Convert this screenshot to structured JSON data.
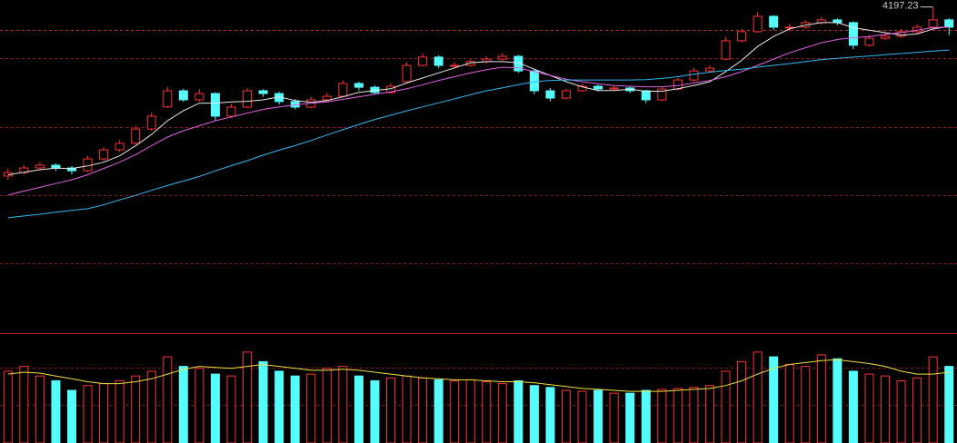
{
  "chart_data": [
    {
      "type": "candlestick",
      "up_color": "#ff3232",
      "down_color": "#54fcfc",
      "ylim": [
        2900,
        4225
      ],
      "open": [
        3525,
        3539,
        3557,
        3568,
        3557,
        3546,
        3593,
        3629,
        3655,
        3712,
        3800,
        3864,
        3828,
        3853,
        3763,
        3799,
        3864,
        3853,
        3821,
        3799,
        3828,
        3842,
        3893,
        3878,
        3857,
        3900,
        3965,
        3998,
        3965,
        3965,
        3980,
        3990,
        4001,
        3943,
        3864,
        3835,
        3864,
        3882,
        3871,
        3875,
        3864,
        3828,
        3871,
        3907,
        3943,
        3990,
        4063,
        4099,
        4160,
        4117,
        4117,
        4135,
        4146,
        4135,
        4045,
        4073,
        4081,
        4099,
        4117,
        4146
      ],
      "high": [
        3555,
        3568,
        3580,
        3575,
        3565,
        3605,
        3640,
        3668,
        3725,
        3778,
        3880,
        3872,
        3870,
        3858,
        3812,
        3875,
        3870,
        3860,
        3830,
        3840,
        3856,
        3905,
        3900,
        3885,
        3895,
        3978,
        4012,
        4005,
        3978,
        3990,
        4002,
        4015,
        4006,
        3948,
        3875,
        3872,
        3892,
        3888,
        3885,
        3880,
        3868,
        3880,
        3915,
        3955,
        3965,
        4078,
        4110,
        4178,
        4165,
        4130,
        4145,
        4158,
        4152,
        4140,
        4085,
        4092,
        4110,
        4128,
        4197.23,
        4152
      ],
      "low": [
        3510,
        3530,
        3548,
        3545,
        3532,
        3540,
        3585,
        3620,
        3650,
        3705,
        3795,
        3820,
        3822,
        3745,
        3755,
        3795,
        3840,
        3810,
        3790,
        3795,
        3820,
        3838,
        3865,
        3848,
        3852,
        3895,
        3960,
        3955,
        3955,
        3960,
        3972,
        3985,
        3935,
        3850,
        3822,
        3830,
        3860,
        3862,
        3865,
        3855,
        3815,
        3822,
        3865,
        3900,
        3935,
        3985,
        4055,
        4095,
        4105,
        4100,
        4110,
        4128,
        4125,
        4030,
        4040,
        4065,
        4075,
        4090,
        4112,
        4085
      ],
      "close": [
        3539,
        3557,
        3568,
        3557,
        3546,
        3593,
        3629,
        3655,
        3712,
        3763,
        3864,
        3828,
        3853,
        3763,
        3799,
        3864,
        3853,
        3821,
        3799,
        3828,
        3842,
        3893,
        3878,
        3857,
        3882,
        3965,
        3998,
        3965,
        3965,
        3980,
        3990,
        4001,
        3943,
        3864,
        3835,
        3864,
        3882,
        3871,
        3875,
        3864,
        3828,
        3871,
        3907,
        3943,
        3954,
        4063,
        4099,
        4160,
        4117,
        4117,
        4135,
        4146,
        4135,
        4045,
        4073,
        4081,
        4099,
        4117,
        4146,
        4117
      ],
      "series": [
        {
          "color": "#e8e8e8",
          "values": [
            3530,
            3540,
            3550,
            3556,
            3555,
            3565,
            3580,
            3605,
            3645,
            3690,
            3745,
            3785,
            3815,
            3815,
            3820,
            3822,
            3828,
            3840,
            3825,
            3818,
            3825,
            3840,
            3858,
            3865,
            3872,
            3895,
            3915,
            3935,
            3955,
            3975,
            3980,
            3980,
            3975,
            3950,
            3925,
            3900,
            3880,
            3865,
            3865,
            3870,
            3862,
            3862,
            3872,
            3885,
            3900,
            3940,
            3985,
            4040,
            4080,
            4110,
            4125,
            4135,
            4135,
            4115,
            4105,
            4095,
            4085,
            4090,
            4110,
            4120
          ]
        },
        {
          "color": "#e060e0",
          "values": [
            3449,
            3465,
            3480,
            3495,
            3510,
            3530,
            3555,
            3580,
            3610,
            3645,
            3680,
            3705,
            3725,
            3745,
            3760,
            3775,
            3790,
            3800,
            3808,
            3814,
            3820,
            3830,
            3840,
            3850,
            3860,
            3872,
            3888,
            3905,
            3920,
            3935,
            3948,
            3958,
            3955,
            3940,
            3925,
            3910,
            3900,
            3892,
            3885,
            3882,
            3880,
            3880,
            3885,
            3895,
            3905,
            3920,
            3940,
            3965,
            3990,
            4015,
            4035,
            4055,
            4068,
            4075,
            4080,
            4088,
            4095,
            4105,
            4115,
            4118
          ]
        },
        {
          "color": "#30b8f0",
          "values": [
            3359,
            3366,
            3373,
            3381,
            3388,
            3395,
            3410,
            3430,
            3448,
            3468,
            3487,
            3505,
            3523,
            3545,
            3566,
            3586,
            3608,
            3628,
            3646,
            3666,
            3688,
            3709,
            3730,
            3750,
            3767,
            3784,
            3800,
            3816,
            3832,
            3848,
            3864,
            3876,
            3888,
            3900,
            3905,
            3907,
            3907,
            3907,
            3907,
            3907,
            3908,
            3913,
            3920,
            3930,
            3938,
            3945,
            3950,
            3958,
            3965,
            3972,
            3980,
            3988,
            3993,
            3998,
            4002,
            4008,
            4012,
            4017,
            4022,
            4026
          ]
        }
      ]
    },
    {
      "type": "bar",
      "ylim": [
        0,
        110
      ],
      "values": [
        75,
        80,
        70,
        65,
        55,
        60,
        62,
        65,
        70,
        75,
        90,
        80,
        78,
        72,
        70,
        95,
        85,
        75,
        70,
        72,
        78,
        80,
        70,
        65,
        68,
        70,
        68,
        66,
        65,
        66,
        64,
        62,
        65,
        60,
        58,
        55,
        54,
        55,
        52,
        52,
        55,
        56,
        57,
        58,
        60,
        75,
        85,
        95,
        90,
        82,
        80,
        92,
        88,
        75,
        72,
        70,
        65,
        68,
        90,
        80
      ],
      "series": [
        {
          "color": "#f0e040",
          "values": [
            72,
            74,
            73,
            70,
            67,
            64,
            62,
            62,
            64,
            67,
            72,
            77,
            80,
            79,
            78,
            80,
            82,
            80,
            78,
            76,
            76,
            77,
            76,
            74,
            72,
            70,
            68,
            67,
            66,
            66,
            65,
            64,
            64,
            63,
            61,
            59,
            57,
            56,
            55,
            54,
            54,
            54,
            55,
            56,
            57,
            60,
            65,
            72,
            78,
            82,
            84,
            86,
            87,
            85,
            83,
            80,
            75,
            72,
            72,
            74
          ]
        }
      ]
    }
  ]
}
